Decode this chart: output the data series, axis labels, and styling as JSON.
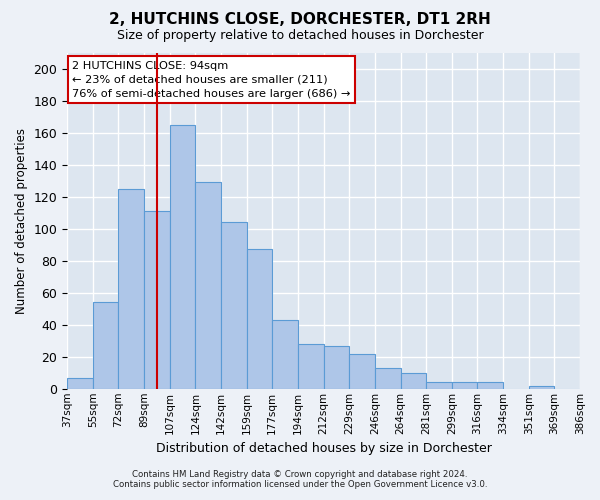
{
  "title": "2, HUTCHINS CLOSE, DORCHESTER, DT1 2RH",
  "subtitle": "Size of property relative to detached houses in Dorchester",
  "xlabel": "Distribution of detached houses by size in Dorchester",
  "ylabel": "Number of detached properties",
  "bar_values": [
    7,
    54,
    125,
    111,
    165,
    129,
    104,
    87,
    43,
    28,
    27,
    22,
    13,
    10,
    4,
    4,
    4,
    0,
    2,
    0
  ],
  "bar_labels": [
    "37sqm",
    "55sqm",
    "72sqm",
    "89sqm",
    "107sqm",
    "124sqm",
    "142sqm",
    "159sqm",
    "177sqm",
    "194sqm",
    "212sqm",
    "229sqm",
    "246sqm",
    "264sqm",
    "281sqm",
    "299sqm",
    "316sqm",
    "334sqm",
    "351sqm",
    "369sqm",
    "386sqm"
  ],
  "bar_color": "#aec6e8",
  "bar_edge_color": "#5b9bd5",
  "background_color": "#dde6f0",
  "grid_color": "#ffffff",
  "red_line_x": 3.5,
  "annotation_text": "2 HUTCHINS CLOSE: 94sqm\n← 23% of detached houses are smaller (211)\n76% of semi-detached houses are larger (686) →",
  "annotation_box_color": "#ffffff",
  "annotation_box_edge": "#cc0000",
  "red_line_color": "#cc0000",
  "ylim": [
    0,
    210
  ],
  "yticks": [
    0,
    20,
    40,
    60,
    80,
    100,
    120,
    140,
    160,
    180,
    200
  ],
  "footer_line1": "Contains HM Land Registry data © Crown copyright and database right 2024.",
  "footer_line2": "Contains public sector information licensed under the Open Government Licence v3.0."
}
